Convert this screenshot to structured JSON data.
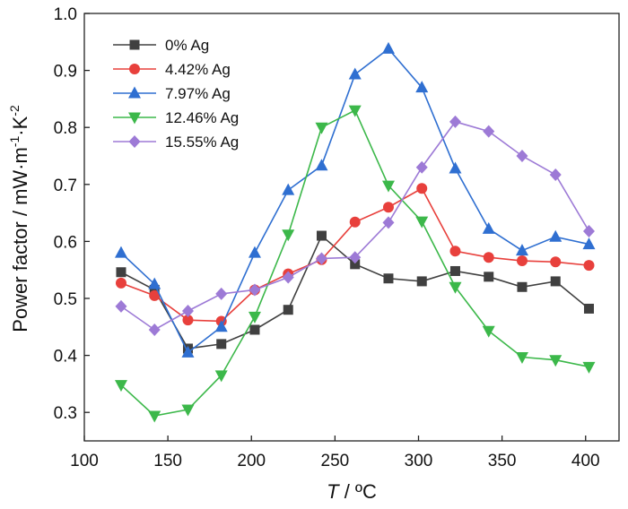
{
  "chart_data": {
    "type": "line",
    "xlabel_var": "T",
    "xlabel_unit": " / ºC",
    "ylabel_text": "Power factor / mW·m",
    "ylabel_sup1": "-1",
    "ylabel_mid": "·K",
    "ylabel_sup2": "-2",
    "xlim": [
      100,
      420
    ],
    "ylim": [
      0.25,
      1.0
    ],
    "x_ticks": [
      100,
      150,
      200,
      250,
      300,
      350,
      400
    ],
    "y_ticks": [
      0.3,
      0.4,
      0.5,
      0.6,
      0.7,
      0.8,
      0.9,
      1.0
    ],
    "y_tick_labels": [
      "0.3",
      "0.4",
      "0.5",
      "0.6",
      "0.7",
      "0.8",
      "0.9",
      "1.0"
    ],
    "grid": false,
    "legend_position": "top-left",
    "x": [
      122,
      142,
      162,
      182,
      202,
      222,
      242,
      262,
      282,
      302,
      322,
      342,
      362,
      382,
      402
    ],
    "series": [
      {
        "name": "0% Ag",
        "color": "#404040",
        "marker": "square",
        "values": [
          0.546,
          0.515,
          0.412,
          0.42,
          0.445,
          0.48,
          0.61,
          0.56,
          0.535,
          0.53,
          0.548,
          0.538,
          0.52,
          0.53,
          0.482
        ]
      },
      {
        "name": "4.42% Ag",
        "color": "#e8403c",
        "marker": "circle",
        "values": [
          0.527,
          0.505,
          0.462,
          0.46,
          0.515,
          0.543,
          0.568,
          0.634,
          0.66,
          0.693,
          0.583,
          0.572,
          0.566,
          0.564,
          0.558
        ]
      },
      {
        "name": "7.97% Ag",
        "color": "#2f6fd1",
        "marker": "triangle-up",
        "values": [
          0.58,
          0.525,
          0.405,
          0.45,
          0.58,
          0.69,
          0.733,
          0.893,
          0.938,
          0.87,
          0.728,
          0.622,
          0.584,
          0.608,
          0.595
        ]
      },
      {
        "name": "12.46% Ag",
        "color": "#3cb84a",
        "marker": "triangle-down",
        "values": [
          0.348,
          0.294,
          0.305,
          0.365,
          0.468,
          0.612,
          0.8,
          0.83,
          0.698,
          0.635,
          0.52,
          0.443,
          0.397,
          0.392,
          0.38
        ]
      },
      {
        "name": "15.55% Ag",
        "color": "#9d7ad6",
        "marker": "diamond",
        "values": [
          0.486,
          0.445,
          0.478,
          0.508,
          0.515,
          0.537,
          0.57,
          0.572,
          0.633,
          0.73,
          0.81,
          0.793,
          0.75,
          0.717,
          0.618
        ]
      }
    ]
  }
}
